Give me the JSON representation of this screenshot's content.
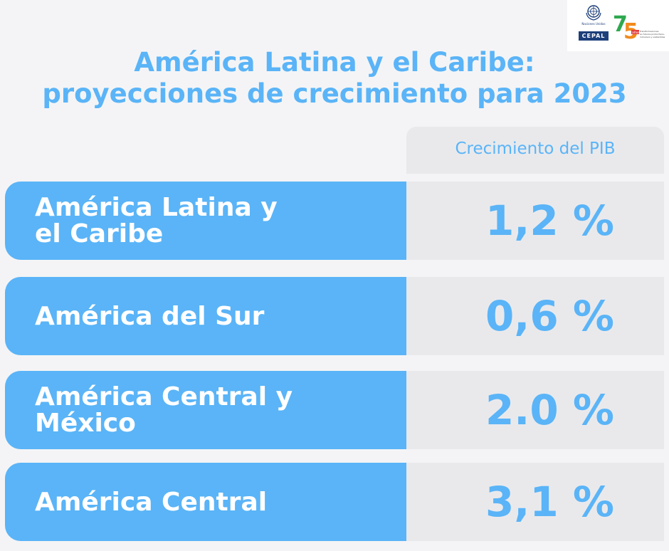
{
  "logos": {
    "un_text": "Naciones Unidas",
    "cepal": "CEPAL",
    "anniversary_number": "75",
    "anniversary_word": "años",
    "anniversary_text": "Transformaciones\nen futuros productivos,\ninclusivos y sostenibles",
    "colors": {
      "un_blue": "#1d3f7a",
      "seven_green": "#2fa84f",
      "five_orange": "#f18a1c",
      "five_red": "#e23a3a"
    }
  },
  "title": {
    "line1": "América Latina y el Caribe:",
    "line2": "proyecciones de crecimiento para 2023"
  },
  "table": {
    "column_header": "Crecimiento del PIB",
    "rows": [
      {
        "region": "América Latina y\nel Caribe",
        "value": "1,2 %"
      },
      {
        "region": "América del Sur",
        "value": "0,6 %"
      },
      {
        "region": "América Central y\nMéxico",
        "value": "2.0 %"
      },
      {
        "region": "América Central",
        "value": "3,1 %"
      }
    ]
  },
  "colors": {
    "accent": "#5ab4f7",
    "cell_background": "#e9e9ec",
    "page_background": "#f4f4f6"
  }
}
